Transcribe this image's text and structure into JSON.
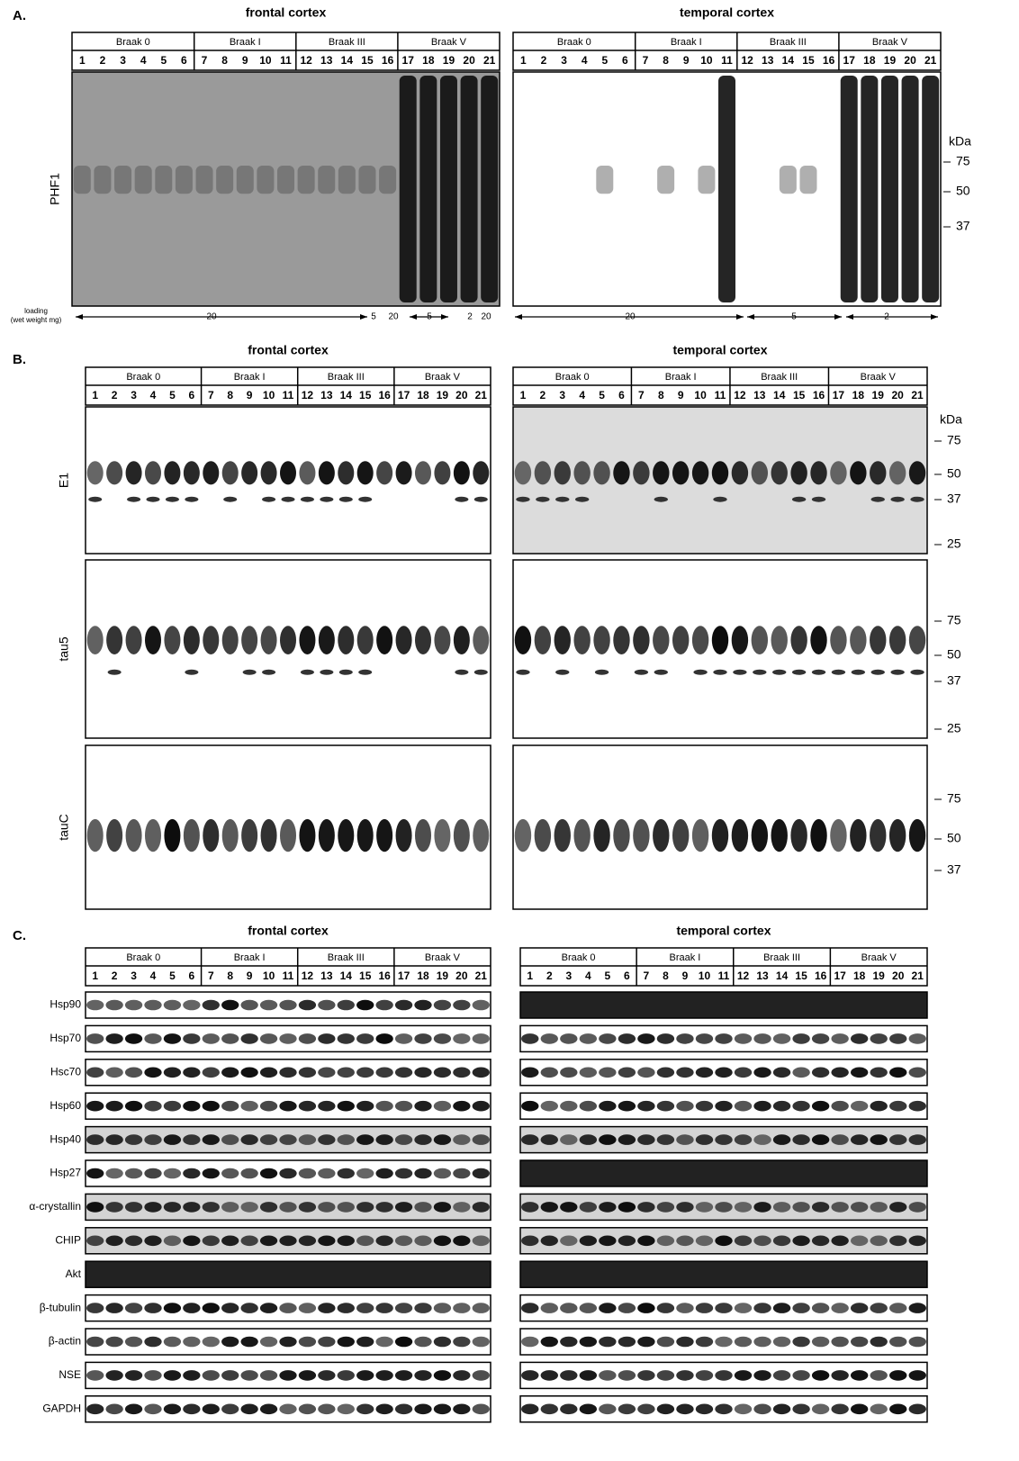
{
  "panels": [
    {
      "label": "A.",
      "columns": [
        {
          "title": "frontal cortex",
          "groups": [
            {
              "name": "Braak 0",
              "lanes": [
                1,
                2,
                3,
                4,
                5,
                6
              ]
            },
            {
              "name": "Braak I",
              "lanes": [
                7,
                8,
                9,
                10,
                11
              ]
            },
            {
              "name": "Braak III",
              "lanes": [
                12,
                13,
                14,
                15,
                16
              ]
            },
            {
              "name": "Braak V",
              "lanes": [
                17,
                18,
                19,
                20,
                21
              ]
            }
          ]
        },
        {
          "title": "temporal cortex",
          "groups": [
            {
              "name": "Braak 0",
              "lanes": [
                1,
                2,
                3,
                4,
                5,
                6
              ]
            },
            {
              "name": "Braak I",
              "lanes": [
                7,
                8,
                9,
                10,
                11
              ]
            },
            {
              "name": "Braak III",
              "lanes": [
                12,
                13,
                14,
                15,
                16
              ]
            },
            {
              "name": "Braak V",
              "lanes": [
                17,
                18,
                19,
                20,
                21
              ]
            }
          ]
        }
      ],
      "rows": [
        {
          "label": "PHF1",
          "kda_unit": "kDa",
          "kda": [
            75,
            50,
            37
          ]
        }
      ],
      "loading": {
        "label": [
          "loading",
          "(wet weight mg)"
        ],
        "frontal": [
          "20",
          "5",
          "20",
          "5",
          "2",
          "20"
        ],
        "temporal": [
          "20",
          "5",
          "2"
        ]
      }
    },
    {
      "label": "B.",
      "columns": [
        {
          "title": "frontal cortex",
          "groups": [
            {
              "name": "Braak 0",
              "lanes": [
                1,
                2,
                3,
                4,
                5,
                6
              ]
            },
            {
              "name": "Braak I",
              "lanes": [
                7,
                8,
                9,
                10,
                11
              ]
            },
            {
              "name": "Braak III",
              "lanes": [
                12,
                13,
                14,
                15,
                16
              ]
            },
            {
              "name": "Braak V",
              "lanes": [
                17,
                18,
                19,
                20,
                21
              ]
            }
          ]
        },
        {
          "title": "temporal cortex",
          "groups": [
            {
              "name": "Braak 0",
              "lanes": [
                1,
                2,
                3,
                4,
                5,
                6
              ]
            },
            {
              "name": "Braak I",
              "lanes": [
                7,
                8,
                9,
                10,
                11
              ]
            },
            {
              "name": "Braak III",
              "lanes": [
                12,
                13,
                14,
                15,
                16
              ]
            },
            {
              "name": "Braak V",
              "lanes": [
                17,
                18,
                19,
                20,
                21
              ]
            }
          ]
        }
      ],
      "rows": [
        {
          "label": "E1",
          "kda_unit": "kDa",
          "kda": [
            75,
            50,
            37,
            25
          ]
        },
        {
          "label": "tau5",
          "kda": [
            75,
            50,
            37,
            25
          ]
        },
        {
          "label": "tauC",
          "kda": [
            75,
            50,
            37
          ]
        }
      ]
    },
    {
      "label": "C.",
      "columns": [
        {
          "title": "frontal cortex",
          "groups": [
            {
              "name": "Braak 0",
              "lanes": [
                1,
                2,
                3,
                4,
                5,
                6
              ]
            },
            {
              "name": "Braak I",
              "lanes": [
                7,
                8,
                9,
                10,
                11
              ]
            },
            {
              "name": "Braak III",
              "lanes": [
                12,
                13,
                14,
                15,
                16
              ]
            },
            {
              "name": "Braak V",
              "lanes": [
                17,
                18,
                19,
                20,
                21
              ]
            }
          ]
        },
        {
          "title": "temporal cortex",
          "groups": [
            {
              "name": "Braak 0",
              "lanes": [
                1,
                2,
                3,
                4,
                5,
                6
              ]
            },
            {
              "name": "Braak I",
              "lanes": [
                7,
                8,
                9,
                10,
                11
              ]
            },
            {
              "name": "Braak III",
              "lanes": [
                12,
                13,
                14,
                15,
                16
              ]
            },
            {
              "name": "Braak V",
              "lanes": [
                17,
                18,
                19,
                20,
                21
              ]
            }
          ]
        }
      ],
      "rows": [
        {
          "label": "Hsp90"
        },
        {
          "label": "Hsp70"
        },
        {
          "label": "Hsc70"
        },
        {
          "label": "Hsp60"
        },
        {
          "label": "Hsp40"
        },
        {
          "label": "Hsp27"
        },
        {
          "label": "α-crystallin"
        },
        {
          "label": "CHIP"
        },
        {
          "label": "Akt"
        },
        {
          "label": "β-tubulin"
        },
        {
          "label": "β-actin"
        },
        {
          "label": "NSE"
        },
        {
          "label": "GAPDH"
        }
      ]
    }
  ]
}
